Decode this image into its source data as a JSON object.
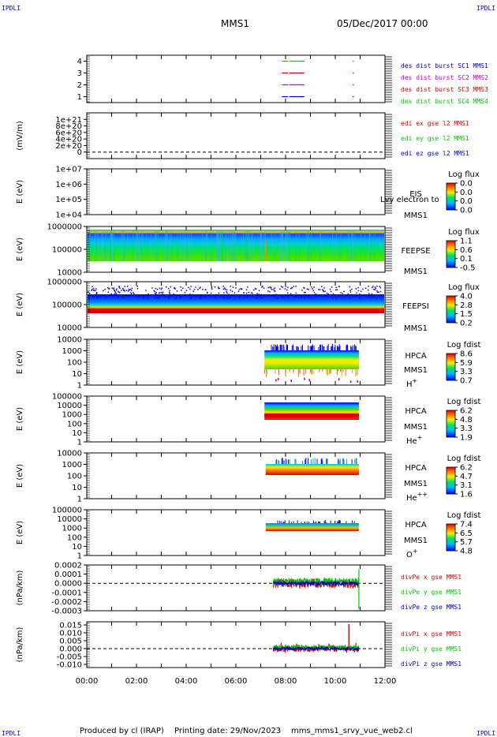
{
  "header": {
    "corner_left": "IPDLI",
    "corner_right": "IPDLI",
    "mission": "MMS1",
    "date": "05/Dec/2017 00:00"
  },
  "footer": {
    "corner_left": "IPDLI",
    "corner_right": "IPDLI",
    "produced_by": "Produced by cl (IRAP)",
    "printing_date": "Printing date: 29/Nov/2023",
    "filename": "mms_mms1_srvy_vue_web2.cl"
  },
  "x_axis": {
    "tick_labels": [
      "00:00",
      "02:00",
      "04:00",
      "06:00",
      "08:00",
      "10:00",
      "12:00"
    ]
  },
  "colors": {
    "black": "#000000",
    "red": "#dd0000",
    "green": "#00c800",
    "blue": "#0000cc",
    "magenta": "#cc00cc",
    "spec_lo": "#0000ff",
    "spec_hi": "#dd0000"
  },
  "chart_data": [
    {
      "type": "line",
      "name": "dist",
      "ylabel": "",
      "ylim": [
        0.5,
        4.5
      ],
      "y_ticks": [
        "4",
        "3",
        "2",
        "1"
      ],
      "legend": [
        {
          "label": "des dist burst SC1 MMS1",
          "color": "#0000cc"
        },
        {
          "label": "des dist burst SC2 MMS2",
          "color": "#cc00cc"
        },
        {
          "label": "des dist burst SC3 MMS3",
          "color": "#dd0000"
        },
        {
          "label": "des dist burst SC4 MMS4",
          "color": "#00c800"
        }
      ],
      "marks": [
        {
          "y": 4,
          "color": "#00c800"
        },
        {
          "y": 3,
          "color": "#dd0000"
        },
        {
          "y": 2,
          "color": "#cc00cc"
        },
        {
          "y": 1,
          "color": "#0000cc"
        }
      ],
      "mark_times": [
        7.85,
        7.95,
        8.15,
        8.25,
        8.4,
        8.55,
        8.6,
        10.7
      ]
    },
    {
      "type": "line",
      "name": "edi",
      "ylabel": "(mV/m)",
      "ylim": [
        -2e+20,
        1.2e+21
      ],
      "y_ticks": [
        "1e+21",
        "8e+20",
        "6e+20",
        "4e+20",
        "2e+20",
        "0"
      ],
      "legend": [
        {
          "label": "edi ex gse l2 MMS1",
          "color": "#dd0000"
        },
        {
          "label": "edi ey gse l2 MMS1",
          "color": "#00c800"
        },
        {
          "label": "edi ez gse l2 MMS1",
          "color": "#0000cc"
        }
      ]
    },
    {
      "type": "heatmap",
      "name": "eis",
      "ylabel": "E (eV)",
      "y_ticks": [
        "1e+07",
        "1e+06",
        "1e+05",
        "1e+04"
      ],
      "labels": [
        "EIS",
        "MMS1"
      ],
      "overlay_text": "Lvy electron to",
      "colorbar": {
        "title": "Log flux",
        "ticks": [
          "0.0",
          "0.0",
          "0.0",
          "0.0"
        ]
      }
    },
    {
      "type": "heatmap",
      "name": "feepse",
      "ylabel": "E (eV)",
      "y_ticks": [
        "1000000",
        "100000",
        "10000"
      ],
      "labels": [
        "FEEPSE",
        "MMS1"
      ],
      "colorbar": {
        "title": "Log flux",
        "ticks": [
          "1.1",
          "0.6",
          "0.1",
          "-0.5"
        ]
      }
    },
    {
      "type": "heatmap",
      "name": "feepsi",
      "ylabel": "E (eV)",
      "y_ticks": [
        "1000000",
        "100000",
        "10000"
      ],
      "labels": [
        "FEEPSI",
        "MMS1"
      ],
      "colorbar": {
        "title": "Log flux",
        "ticks": [
          "4.0",
          "2.8",
          "1.5",
          "0.2"
        ]
      }
    },
    {
      "type": "heatmap",
      "name": "hpca-h",
      "ylabel": "E (eV)",
      "y_ticks": [
        "10000",
        "1000",
        "100",
        "10",
        "1"
      ],
      "labels": [
        "HPCA",
        "MMS1"
      ],
      "species": "H",
      "charge": "+",
      "colorbar": {
        "title": "Log fdist",
        "ticks": [
          "8.6",
          "5.9",
          "3.3",
          "0.7"
        ]
      }
    },
    {
      "type": "heatmap",
      "name": "hpca-he",
      "ylabel": "E (eV)",
      "y_ticks": [
        "100000",
        "10000",
        "1000",
        "100",
        "10",
        "1"
      ],
      "labels": [
        "HPCA",
        "MMS1"
      ],
      "species": "He",
      "charge": "+",
      "colorbar": {
        "title": "Log fdist",
        "ticks": [
          "6.2",
          "4.8",
          "3.3",
          "1.9"
        ]
      }
    },
    {
      "type": "heatmap",
      "name": "hpca-he2",
      "ylabel": "E (eV)",
      "y_ticks": [
        "10000",
        "1000",
        "100",
        "10",
        "1"
      ],
      "labels": [
        "HPCA",
        "MMS1"
      ],
      "species": "He",
      "charge": "++",
      "colorbar": {
        "title": "Log fdist",
        "ticks": [
          "6.2",
          "4.7",
          "3.1",
          "1.6"
        ]
      }
    },
    {
      "type": "heatmap",
      "name": "hpca-o",
      "ylabel": "E (eV)",
      "y_ticks": [
        "100000",
        "10000",
        "1000",
        "100",
        "10",
        "1"
      ],
      "labels": [
        "HPCA",
        "MMS1"
      ],
      "species": "O",
      "charge": "+",
      "colorbar": {
        "title": "Log fdist",
        "ticks": [
          "7.4",
          "6.5",
          "5.7",
          "4.8"
        ]
      }
    },
    {
      "type": "line",
      "name": "divpe",
      "ylabel": "(nPa/km)",
      "ylim": [
        -0.0003,
        0.0002
      ],
      "y_ticks": [
        "0.0002",
        "0.0001",
        "0.0000",
        "-0.0001",
        "-0.0002",
        "-0.0003"
      ],
      "legend": [
        {
          "label": "divPe x gse MMS1",
          "color": "#dd0000"
        },
        {
          "label": "divPe y gse MMS1",
          "color": "#00c800"
        },
        {
          "label": "divPe z gse MMS1",
          "color": "#0000cc"
        }
      ]
    },
    {
      "type": "line",
      "name": "divpi",
      "ylabel": "(nPa/km)",
      "ylim": [
        -0.012,
        0.017
      ],
      "y_ticks": [
        "0.015",
        "0.010",
        "0.005",
        "0.000",
        "-0.005",
        "-0.010"
      ],
      "legend": [
        {
          "label": "divPi x gse MMS1",
          "color": "#dd0000"
        },
        {
          "label": "divPi y gse MMS1",
          "color": "#00c800"
        },
        {
          "label": "divPi z gse MMS1",
          "color": "#0000cc"
        }
      ]
    }
  ]
}
